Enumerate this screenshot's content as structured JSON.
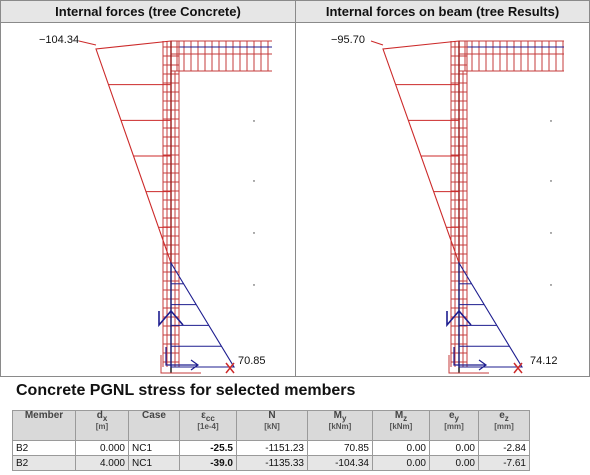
{
  "panels": [
    {
      "title": "Internal forces  (tree Concrete)",
      "top_value": "−104.34",
      "bottom_value": "70.85"
    },
    {
      "title": "Internal forces on beam  (tree Results)",
      "top_value": "−95.70",
      "bottom_value": "74.12"
    }
  ],
  "colors": {
    "moment": "#cc2a2a",
    "beam": "#1d1d8f",
    "grid": "#c43b3b"
  },
  "section": {
    "title": "Concrete PGNL stress for selected members"
  },
  "table": {
    "headers": [
      {
        "main": "Member",
        "sub": "",
        "unit": ""
      },
      {
        "main": "d",
        "sub": "x",
        "unit": "[m]"
      },
      {
        "main": "Case",
        "sub": "",
        "unit": ""
      },
      {
        "main": "ε",
        "sub": "cc",
        "unit": "[1e-4]"
      },
      {
        "main": "N",
        "sub": "",
        "unit": "[kN]"
      },
      {
        "main": "M",
        "sub": "y",
        "unit": "[kNm]"
      },
      {
        "main": "M",
        "sub": "z",
        "unit": "[kNm]"
      },
      {
        "main": "e",
        "sub": "y",
        "unit": "[mm]"
      },
      {
        "main": "e",
        "sub": "z",
        "unit": "[mm]"
      }
    ],
    "rows": [
      [
        "B2",
        "0.000",
        "NC1",
        "-25.5",
        "-1151.23",
        "70.85",
        "0.00",
        "0.00",
        "-2.84"
      ],
      [
        "B2",
        "4.000",
        "NC1",
        "-39.0",
        "-1135.33",
        "-104.34",
        "0.00",
        "0.00",
        "-7.61"
      ]
    ]
  }
}
